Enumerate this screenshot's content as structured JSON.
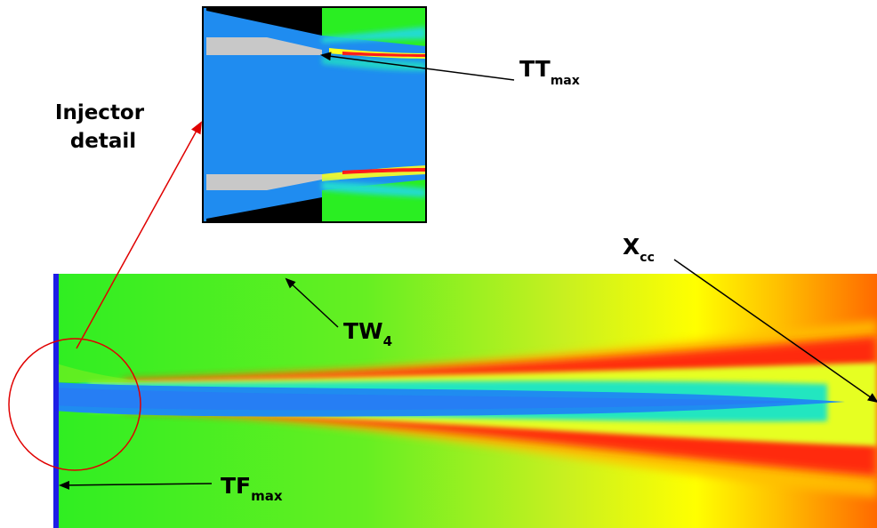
{
  "labels": {
    "injector_detail_line1": "Injector",
    "injector_detail_line2": "detail",
    "tt_base": "TT",
    "tt_sub": "max",
    "xcc_base": "X",
    "xcc_sub": "cc",
    "tw_base": "TW",
    "tw_sub": "4",
    "tf_base": "TF",
    "tf_sub": "max"
  },
  "colors": {
    "core_blue": "#1f8cf0",
    "wall_blue": "#1e1ee6",
    "field_green": "#22ee22",
    "hot_red": "#ff1a1a",
    "callout_red": "#e00000",
    "annotation": "#000000"
  }
}
